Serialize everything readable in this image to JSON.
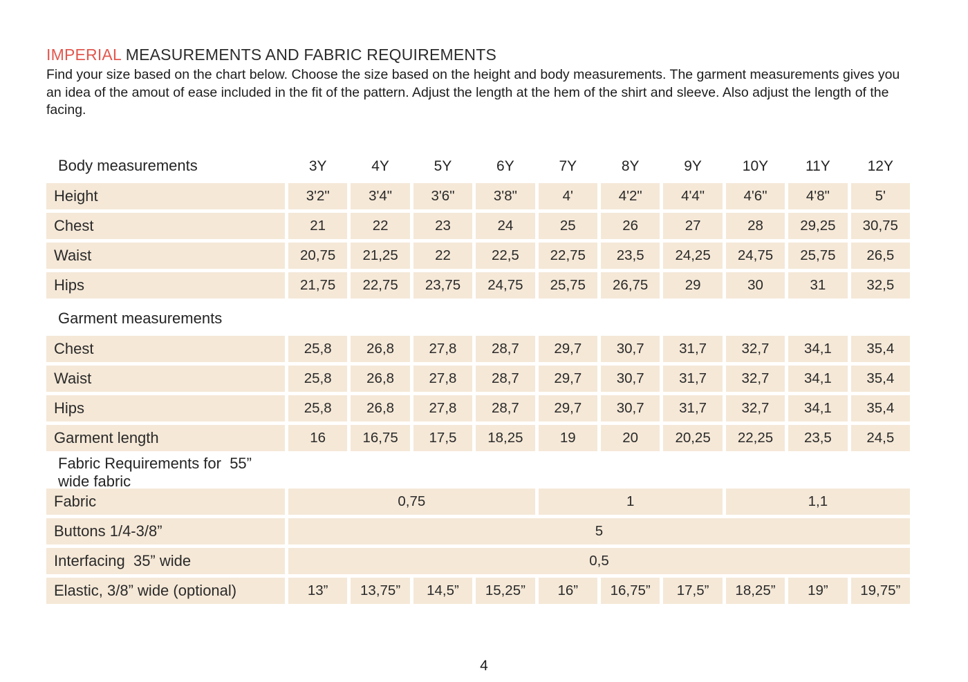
{
  "header": {
    "title_accent": "IMPERIAL",
    "title_rest": " MEASUREMENTS AND FABRIC REQUIREMENTS",
    "intro": "Find your size based on the chart below. Choose the size based on the height and body measurements. The garment measurements gives you an idea of the amout of ease included in the fit of the pattern. Adjust the length at the hem of the shirt and sleeve. Also adjust the length of the facing."
  },
  "colors": {
    "accent_red": "#e2574e",
    "cell_beige": "#f5e8d7",
    "text_dark": "#232323"
  },
  "table": {
    "columns": [
      "3Y",
      "4Y",
      "5Y",
      "6Y",
      "7Y",
      "8Y",
      "9Y",
      "10Y",
      "11Y",
      "12Y"
    ],
    "sections": [
      {
        "title": "Body measurements",
        "show_columns": true,
        "rows": [
          {
            "label": "Height",
            "cells": [
              "3'2\"",
              "3'4\"",
              "3'6\"",
              "3'8\"",
              "4'",
              "4'2\"",
              "4'4\"",
              "4'6\"",
              "4'8\"",
              "5'"
            ]
          },
          {
            "label": "Chest",
            "cells": [
              "21",
              "22",
              "23",
              "24",
              "25",
              "26",
              "27",
              "28",
              "29,25",
              "30,75"
            ]
          },
          {
            "label": "Waist",
            "cells": [
              "20,75",
              "21,25",
              "22",
              "22,5",
              "22,75",
              "23,5",
              "24,25",
              "24,75",
              "25,75",
              "26,5"
            ]
          },
          {
            "label": "Hips",
            "cells": [
              "21,75",
              "22,75",
              "23,75",
              "24,75",
              "25,75",
              "26,75",
              "29",
              "30",
              "31",
              "32,5"
            ]
          }
        ]
      },
      {
        "title": "Garment measurements",
        "show_columns": false,
        "rows": [
          {
            "label": "Chest",
            "cells": [
              "25,8",
              "26,8",
              "27,8",
              "28,7",
              "29,7",
              "30,7",
              "31,7",
              "32,7",
              "34,1",
              "35,4"
            ]
          },
          {
            "label": "Waist",
            "cells": [
              "25,8",
              "26,8",
              "27,8",
              "28,7",
              "29,7",
              "30,7",
              "31,7",
              "32,7",
              "34,1",
              "35,4"
            ]
          },
          {
            "label": "Hips",
            "cells": [
              "25,8",
              "26,8",
              "27,8",
              "28,7",
              "29,7",
              "30,7",
              "31,7",
              "32,7",
              "34,1",
              "35,4"
            ]
          },
          {
            "label": "Garment length",
            "cells": [
              "16",
              "16,75",
              "17,5",
              "18,25",
              "19",
              "20",
              "20,25",
              "22,25",
              "23,5",
              "24,5"
            ]
          }
        ]
      },
      {
        "title": "Fabric Requirements for  55” wide fabric",
        "show_columns": false,
        "rows": [
          {
            "label": "Fabric",
            "spans": [
              {
                "text": "0,75",
                "cols": 4
              },
              {
                "text": "1",
                "cols": 3
              },
              {
                "text": "1,1",
                "cols": 3
              }
            ]
          },
          {
            "label": "Buttons 1/4-3/8”",
            "spans": [
              {
                "text": "5",
                "cols": 10
              }
            ]
          },
          {
            "label": "Interfacing  35” wide",
            "spans": [
              {
                "text": "0,5",
                "cols": 10
              }
            ]
          },
          {
            "label": "Elastic, 3/8” wide (optional)",
            "cells": [
              "13”",
              "13,75”",
              "14,5”",
              "15,25”",
              "16”",
              "16,75”",
              "17,5”",
              "18,25”",
              "19”",
              "19,75”"
            ]
          }
        ]
      }
    ]
  },
  "footer": {
    "page_number": "4"
  }
}
